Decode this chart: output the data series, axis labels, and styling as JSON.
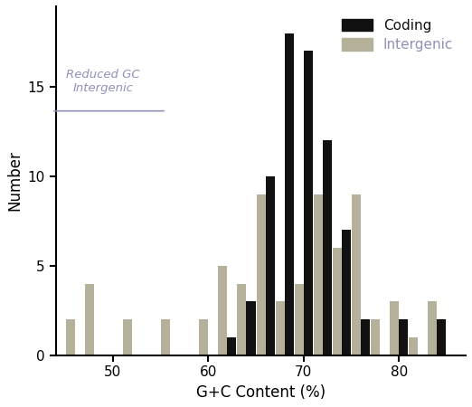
{
  "coding_bins": [
    46,
    48,
    50,
    52,
    54,
    56,
    58,
    60,
    62,
    64,
    66,
    68,
    70,
    72,
    74,
    76,
    78,
    80,
    82,
    84
  ],
  "coding_values": [
    0,
    0,
    0,
    0,
    0,
    0,
    0,
    0,
    1,
    3,
    10,
    18,
    17,
    12,
    7,
    2,
    0,
    2,
    0,
    2
  ],
  "intergenic_bins": [
    46,
    48,
    50,
    52,
    54,
    56,
    58,
    60,
    62,
    64,
    66,
    68,
    70,
    72,
    74,
    76,
    78,
    80,
    82,
    84
  ],
  "intergenic_values": [
    2,
    4,
    0,
    2,
    0,
    2,
    0,
    2,
    5,
    4,
    9,
    3,
    4,
    9,
    6,
    9,
    2,
    3,
    1,
    3
  ],
  "bar_width": 1.9,
  "coding_color": "#111111",
  "intergenic_color": "#b5b09a",
  "annotation_text": "Reduced GC\nIntergenic",
  "annotation_color": "#9090bb",
  "annotation_line_color": "#9090bb",
  "xlabel": "G+C Content (%)",
  "ylabel": "Number",
  "xlim": [
    44,
    87
  ],
  "ylim": [
    0,
    19.5
  ],
  "xticks": [
    50,
    60,
    70,
    80
  ],
  "yticks": [
    0,
    5,
    10,
    15
  ],
  "legend_coding": "Coding",
  "legend_intergenic": "Intergenic",
  "figsize": [
    5.22,
    4.5
  ],
  "dpi": 100
}
